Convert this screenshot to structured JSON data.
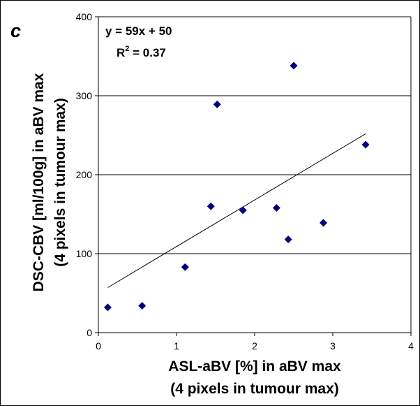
{
  "chart_data": {
    "type": "scatter",
    "panel_label": "c",
    "xlabel_line1": "ASL-aBV [%] in aBV max",
    "xlabel_line2": "(4 pixels in tumour max)",
    "ylabel_line1": "DSC-CBV [ml/100g]  in aBV max",
    "ylabel_line2": "(4 pixels in tumour max)",
    "xlim": [
      0,
      4
    ],
    "ylim": [
      0,
      400
    ],
    "x_ticks": [
      "0",
      "1",
      "2",
      "3",
      "4"
    ],
    "y_ticks": [
      "0",
      "100",
      "200",
      "300",
      "400"
    ],
    "grid_horizontal": true,
    "points": [
      {
        "x": 0.12,
        "y": 32
      },
      {
        "x": 0.56,
        "y": 34
      },
      {
        "x": 1.11,
        "y": 83
      },
      {
        "x": 1.44,
        "y": 160
      },
      {
        "x": 1.52,
        "y": 289
      },
      {
        "x": 1.85,
        "y": 155
      },
      {
        "x": 2.28,
        "y": 158
      },
      {
        "x": 2.43,
        "y": 118
      },
      {
        "x": 2.5,
        "y": 338
      },
      {
        "x": 2.88,
        "y": 139
      },
      {
        "x": 3.42,
        "y": 238
      }
    ],
    "marker_color": "#000080",
    "trendline": {
      "slope": 59,
      "intercept": 50,
      "x_start": 0.12,
      "x_end": 3.42
    },
    "equation": "y = 59x + 50",
    "r_squared_prefix": "R",
    "r_squared_sup": "2",
    "r_squared_value": " = 0.37"
  }
}
